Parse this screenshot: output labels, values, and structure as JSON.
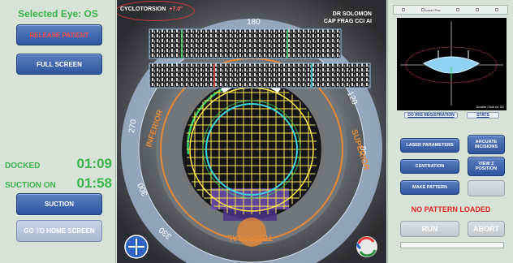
{
  "left_panel": {
    "eye_label": "Selected Eye: OS",
    "release_patient": "RELEASE PATIENT",
    "full_screen": "FULL SCREEN",
    "docked_label": "DOCKED",
    "docked_time": "01:09",
    "suction_on_label": "SUCTION ON",
    "suction_on_time": "01:58",
    "suction_button": "SUCTION",
    "home_button": "GO TO HOME SCREEN"
  },
  "center_view": {
    "cyclotorsion_label": "CYCLOTORSION",
    "cyclotorsion_value": "+7.0°",
    "doctor": "DR SOLOMON",
    "procedure": "CAP FRAG CCI AI",
    "ring_labels": {
      "deg_180": "180",
      "deg_120": "120",
      "deg_90": "90",
      "deg_270": "270",
      "deg_300": "300",
      "deg_330": "330",
      "inferior": "INFERIOR",
      "superior": "SUPERIOR",
      "temporal": "TEMPORAL"
    },
    "colors": {
      "ring_outer": "#9fb4cc",
      "orange_ring": "#e48a3a",
      "grid": "#ffe44d",
      "cyan": "#3fd3e0",
      "green": "#3bd16a",
      "purple": "#6d4fb0"
    }
  },
  "right_panel": {
    "tabs": [
      "",
      "Laser Pwr",
      "",
      "",
      ""
    ],
    "oct_note": "Double Click for 3D",
    "iris_registration": "DO IRIS REGISTRATION",
    "stats": "STATS",
    "laser_parameters": "LASER PARAMETERS",
    "arcuate_incisions": "ARCUATE INCISIONS",
    "centration": "CENTRATION",
    "view_z_position": "VIEW Z POSITION",
    "make_pattern": "MAKE PATTERN",
    "status": "NO PATTERN LOADED",
    "run": "RUN",
    "abort": "ABORT",
    "colors": {
      "status": "#e02424",
      "accent_blue": "#2e56a0",
      "lens_blue": "#8fd0f5"
    }
  }
}
